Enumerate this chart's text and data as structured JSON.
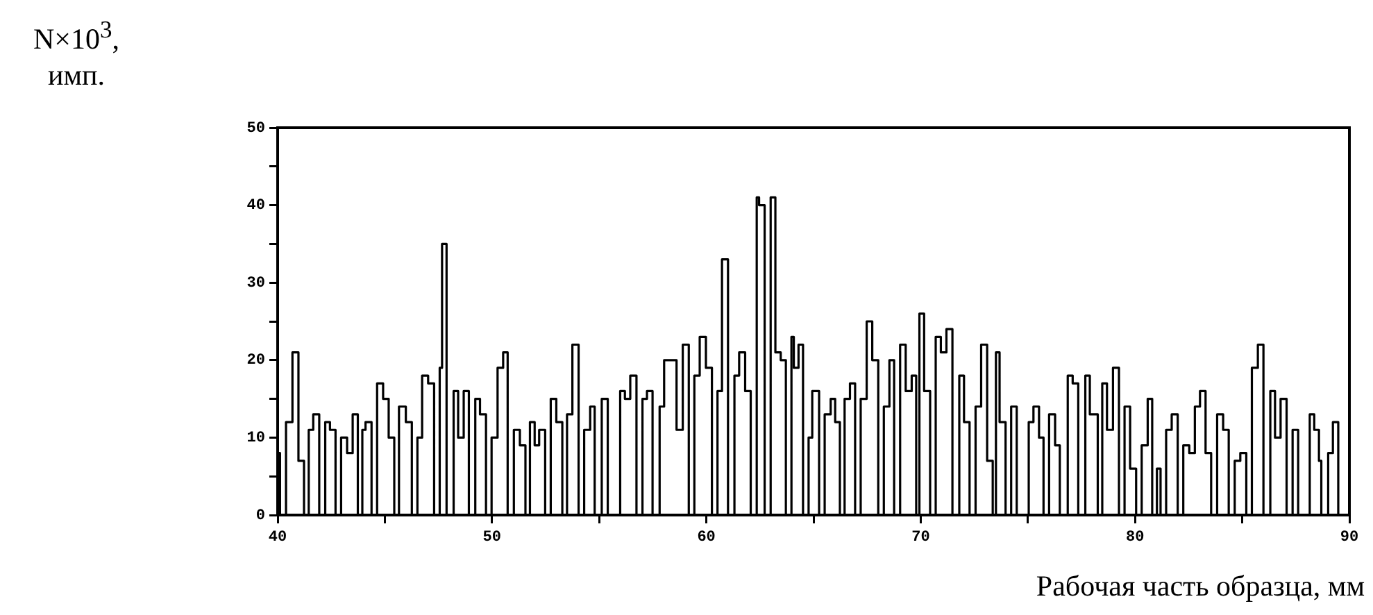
{
  "chart_data": {
    "type": "step",
    "xlabel": "Рабочая часть образца, мм",
    "ylabel": "N×10$^{3}$, имп.",
    "color": "#000000",
    "x": [
      40.0,
      40.11,
      40.39,
      40.69,
      40.97,
      41.23,
      41.45,
      41.66,
      41.94,
      42.22,
      42.44,
      42.7,
      42.96,
      43.24,
      43.5,
      43.74,
      43.95,
      44.1,
      44.38,
      44.64,
      44.92,
      45.18,
      45.44,
      45.66,
      45.98,
      46.26,
      46.52,
      46.74,
      47.02,
      47.3,
      47.56,
      47.67,
      47.88,
      48.21,
      48.42,
      48.68,
      48.92,
      49.22,
      49.44,
      49.72,
      49.98,
      50.26,
      50.52,
      50.73,
      51.02,
      51.3,
      51.56,
      51.77,
      51.99,
      52.2,
      52.48,
      52.74,
      53.0,
      53.28,
      53.5,
      53.75,
      54.04,
      54.3,
      54.58,
      54.79,
      55.12,
      55.4,
      55.98,
      56.2,
      56.45,
      56.74,
      57.02,
      57.23,
      57.49,
      57.82,
      58.03,
      58.61,
      58.9,
      59.18,
      59.44,
      59.69,
      59.98,
      60.26,
      60.52,
      60.73,
      61.01,
      61.31,
      61.53,
      61.81,
      62.07,
      62.35,
      62.46,
      62.72,
      63.0,
      63.22,
      63.47,
      63.71,
      63.97,
      64.08,
      64.3,
      64.51,
      64.77,
      64.94,
      65.26,
      65.52,
      65.8,
      66.01,
      66.23,
      66.45,
      66.7,
      66.94,
      67.2,
      67.48,
      67.74,
      68.02,
      68.28,
      68.54,
      68.76,
      69.04,
      69.3,
      69.58,
      69.79,
      69.94,
      70.16,
      70.44,
      70.7,
      70.94,
      71.2,
      71.48,
      71.8,
      72.02,
      72.28,
      72.56,
      72.82,
      73.1,
      73.36,
      73.51,
      73.68,
      73.96,
      74.22,
      74.48,
      75.04,
      75.26,
      75.52,
      75.73,
      75.99,
      76.27,
      76.49,
      76.86,
      77.09,
      77.35,
      77.68,
      77.89,
      78.26,
      78.47,
      78.69,
      78.97,
      79.25,
      79.51,
      79.77,
      80.05,
      80.31,
      80.59,
      80.8,
      81.02,
      81.19,
      81.45,
      81.71,
      81.99,
      82.25,
      82.53,
      82.79,
      83.03,
      83.29,
      83.55,
      83.83,
      84.11,
      84.37,
      84.65,
      84.91,
      85.19,
      85.45,
      85.73,
      85.99,
      86.31,
      86.53,
      86.79,
      87.07,
      87.35,
      87.61,
      88.15,
      88.36,
      88.58,
      88.69,
      89.01,
      89.23,
      89.48,
      89.72,
      90
    ],
    "values": [
      13,
      8,
      0,
      12,
      21,
      7,
      0,
      11,
      13,
      0,
      12,
      11,
      0,
      10,
      8,
      13,
      0,
      11,
      12,
      0,
      17,
      15,
      10,
      0,
      14,
      12,
      0,
      10,
      18,
      17,
      0,
      19,
      35,
      0,
      16,
      10,
      16,
      0,
      15,
      13,
      0,
      10,
      19,
      21,
      0,
      11,
      9,
      0,
      12,
      9,
      11,
      0,
      15,
      12,
      0,
      13,
      22,
      0,
      11,
      14,
      0,
      15,
      0,
      16,
      15,
      18,
      0,
      15,
      16,
      0,
      14,
      20,
      11,
      22,
      0,
      18,
      23,
      19,
      0,
      16,
      33,
      0,
      18,
      21,
      16,
      0,
      41,
      40,
      0,
      41,
      21,
      20,
      0,
      23,
      19,
      22,
      0,
      10,
      16,
      0,
      13,
      15,
      12,
      0,
      15,
      17,
      0,
      15,
      25,
      20,
      0,
      14,
      20,
      0,
      22,
      16,
      18,
      0,
      26,
      16,
      0,
      23,
      21,
      24,
      0,
      18,
      12,
      0,
      14,
      22,
      7,
      0,
      21,
      12,
      0,
      14,
      0,
      12,
      14,
      10,
      0,
      13,
      9,
      0,
      18,
      17,
      0,
      18,
      13,
      0,
      17,
      11,
      19,
      0,
      14,
      6,
      0,
      9,
      15,
      0,
      6,
      0,
      11,
      13,
      0,
      9,
      8,
      14,
      16,
      8,
      0,
      13,
      11,
      0,
      7,
      8,
      0,
      19,
      22,
      0,
      16,
      10,
      15,
      0,
      11,
      0,
      13,
      11,
      7,
      0,
      8,
      12,
      0,
      0
    ],
    "xlim": [
      40,
      90
    ],
    "ylim": [
      0,
      50
    ],
    "xticks": [
      40,
      {
        "value": 45,
        "label": null
      },
      50,
      {
        "value": 55,
        "label": null
      },
      60,
      {
        "value": 65,
        "label": null
      },
      70,
      {
        "value": 75,
        "label": null
      },
      80,
      {
        "value": 85,
        "label": null
      },
      90
    ],
    "yticks": [
      0,
      {
        "value": 5,
        "label": null
      },
      10,
      {
        "value": 15,
        "label": null
      },
      20,
      {
        "value": 25,
        "label": null
      },
      30,
      {
        "value": 35,
        "label": null
      },
      40,
      {
        "value": 45,
        "label": null
      },
      50
    ]
  }
}
